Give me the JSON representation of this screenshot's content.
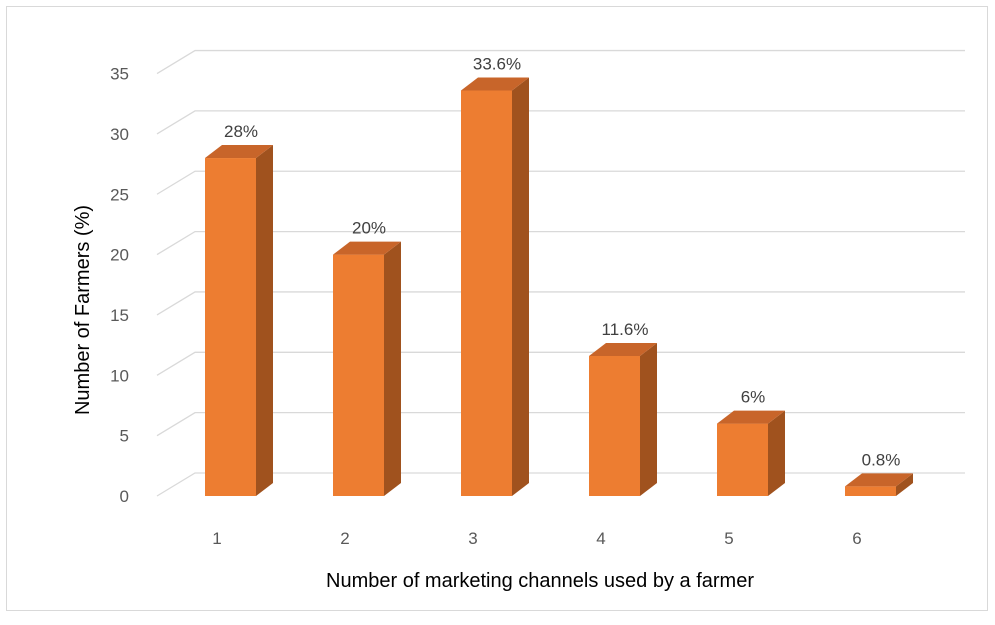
{
  "chart_data": {
    "type": "bar",
    "style": "3d-column",
    "categories": [
      "1",
      "2",
      "3",
      "4",
      "5",
      "6"
    ],
    "values": [
      28,
      20,
      33.6,
      11.6,
      6,
      0.8
    ],
    "data_labels": [
      "28%",
      "20%",
      "33.6%",
      "11.6%",
      "6%",
      "0.8%"
    ],
    "xlabel": "Number of marketing channels used by a farmer",
    "ylabel": "Number of Farmers (%)",
    "yticks": [
      "0",
      "5",
      "10",
      "15",
      "20",
      "25",
      "30",
      "35"
    ],
    "ylim": [
      0,
      35
    ],
    "grid": true,
    "legend": "none",
    "colors": {
      "front": "#ED7D31",
      "side": "#A0521E",
      "top": "#C8652A",
      "grid": "#d9d9d9"
    }
  }
}
